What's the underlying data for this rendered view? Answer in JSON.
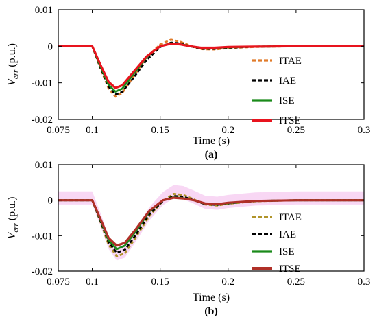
{
  "chart_data": [
    {
      "type": "line",
      "caption": "(a)",
      "xlabel": "Time (s)",
      "ylabel_main": "V",
      "ylabel_sub": "err",
      "ylabel_unit": " (p.u.)",
      "xlim": [
        0.075,
        0.3
      ],
      "ylim": [
        -0.02,
        0.01
      ],
      "xticks": [
        0.075,
        0.1,
        0.15,
        0.2,
        0.25,
        0.3
      ],
      "xtick_labels": [
        "0.075",
        "0.1",
        "0.15",
        "0.2",
        "0.25",
        "0.3"
      ],
      "yticks": [
        0.01,
        0,
        -0.01,
        -0.02
      ],
      "ytick_labels": [
        "0.01",
        "0",
        "-0.01",
        "-0.02"
      ],
      "legend_position": "lower-right",
      "series": [
        {
          "name": "ITAE",
          "color": "#e07b2a",
          "dash": "dashed",
          "x": [
            0.075,
            0.1,
            0.106,
            0.112,
            0.117,
            0.122,
            0.13,
            0.14,
            0.15,
            0.158,
            0.165,
            0.172,
            0.18,
            0.19,
            0.2,
            0.22,
            0.25,
            0.3
          ],
          "y": [
            0.0,
            0.0,
            -0.006,
            -0.0115,
            -0.0138,
            -0.0128,
            -0.0085,
            -0.003,
            0.0005,
            0.0018,
            0.0012,
            0.0002,
            -0.0008,
            -0.0009,
            -0.0005,
            -0.0002,
            0.0,
            0.0
          ]
        },
        {
          "name": "IAE",
          "color": "#000000",
          "dash": "dashed",
          "x": [
            0.075,
            0.1,
            0.106,
            0.112,
            0.117,
            0.122,
            0.13,
            0.14,
            0.15,
            0.158,
            0.165,
            0.172,
            0.18,
            0.19,
            0.2,
            0.22,
            0.25,
            0.3
          ],
          "y": [
            0.0,
            0.0,
            -0.0058,
            -0.011,
            -0.0132,
            -0.0125,
            -0.0088,
            -0.0038,
            -0.0002,
            0.001,
            0.0008,
            0.0,
            -0.0007,
            -0.0007,
            -0.0004,
            -0.0001,
            0.0,
            0.0
          ]
        },
        {
          "name": "ISE",
          "color": "#1a8a1a",
          "dash": "solid",
          "x": [
            0.075,
            0.1,
            0.106,
            0.112,
            0.117,
            0.122,
            0.13,
            0.14,
            0.15,
            0.158,
            0.165,
            0.172,
            0.18,
            0.19,
            0.2,
            0.22,
            0.25,
            0.3
          ],
          "y": [
            0.0,
            0.0,
            -0.0055,
            -0.0105,
            -0.0124,
            -0.0116,
            -0.0078,
            -0.003,
            0.0,
            0.0008,
            0.0006,
            0.0,
            -0.0005,
            -0.0005,
            -0.0003,
            -0.0001,
            0.0,
            0.0
          ]
        },
        {
          "name": "ITSE",
          "color": "#e8141e",
          "dash": "solid",
          "x": [
            0.075,
            0.1,
            0.106,
            0.112,
            0.117,
            0.122,
            0.13,
            0.14,
            0.15,
            0.158,
            0.165,
            0.172,
            0.18,
            0.19,
            0.2,
            0.22,
            0.25,
            0.3
          ],
          "y": [
            0.0,
            0.0,
            -0.005,
            -0.0097,
            -0.0114,
            -0.0107,
            -0.0072,
            -0.0028,
            0.0,
            0.0007,
            0.0005,
            0.0,
            -0.0004,
            -0.0004,
            -0.0002,
            -0.0001,
            0.0,
            0.0
          ]
        }
      ]
    },
    {
      "type": "line",
      "caption": "(b)",
      "xlabel": "Time (s)",
      "ylabel_main": "V",
      "ylabel_sub": "err",
      "ylabel_unit": " (p.u.)",
      "xlim": [
        0.075,
        0.3
      ],
      "ylim": [
        -0.02,
        0.01
      ],
      "xticks": [
        0.075,
        0.1,
        0.15,
        0.2,
        0.25,
        0.3
      ],
      "xtick_labels": [
        "0.075",
        "0.1",
        "0.15",
        "0.2",
        "0.25",
        "0.3"
      ],
      "yticks": [
        0.01,
        0,
        -0.01,
        -0.02
      ],
      "ytick_labels": [
        "0.01",
        "0",
        "-0.01",
        "-0.02"
      ],
      "legend_position": "lower-right",
      "band_color": "#f5c6f0",
      "series": [
        {
          "name": "ITAE",
          "color": "#b0942a",
          "dash": "dashed",
          "x": [
            0.075,
            0.1,
            0.106,
            0.112,
            0.118,
            0.124,
            0.132,
            0.142,
            0.152,
            0.16,
            0.167,
            0.175,
            0.183,
            0.192,
            0.2,
            0.22,
            0.25,
            0.3
          ],
          "y": [
            0.0,
            0.0,
            -0.006,
            -0.0125,
            -0.0158,
            -0.015,
            -0.0105,
            -0.0045,
            -0.0002,
            0.0018,
            0.0015,
            0.0002,
            -0.0012,
            -0.0015,
            -0.001,
            -0.0003,
            0.0,
            0.0
          ]
        },
        {
          "name": "IAE",
          "color": "#000000",
          "dash": "dashed",
          "x": [
            0.075,
            0.1,
            0.106,
            0.112,
            0.118,
            0.124,
            0.132,
            0.142,
            0.152,
            0.16,
            0.167,
            0.175,
            0.183,
            0.192,
            0.2,
            0.22,
            0.25,
            0.3
          ],
          "y": [
            0.0,
            0.0,
            -0.0058,
            -0.0118,
            -0.0148,
            -0.014,
            -0.0098,
            -0.004,
            -0.0002,
            0.0012,
            0.001,
            0.0,
            -0.0011,
            -0.0013,
            -0.0009,
            -0.0002,
            0.0,
            0.0
          ]
        },
        {
          "name": "ISE",
          "color": "#1a8a1a",
          "dash": "solid",
          "x": [
            0.075,
            0.1,
            0.106,
            0.112,
            0.118,
            0.124,
            0.132,
            0.142,
            0.152,
            0.16,
            0.167,
            0.175,
            0.183,
            0.192,
            0.2,
            0.22,
            0.25,
            0.3
          ],
          "y": [
            0.0,
            0.0,
            -0.0055,
            -0.0112,
            -0.0138,
            -0.0128,
            -0.0088,
            -0.0032,
            0.0,
            0.0008,
            0.0006,
            0.0,
            -0.001,
            -0.0012,
            -0.0008,
            -0.0002,
            0.0,
            0.0
          ]
        },
        {
          "name": "ITSE",
          "color": "#b03028",
          "dash": "solid",
          "x": [
            0.075,
            0.1,
            0.106,
            0.112,
            0.118,
            0.124,
            0.132,
            0.142,
            0.152,
            0.16,
            0.167,
            0.175,
            0.183,
            0.192,
            0.2,
            0.22,
            0.25,
            0.3
          ],
          "y": [
            0.0,
            0.0,
            -0.0052,
            -0.0106,
            -0.0128,
            -0.012,
            -0.0082,
            -0.003,
            0.0,
            0.0007,
            0.0005,
            0.0,
            -0.0009,
            -0.0011,
            -0.0007,
            -0.0002,
            0.0,
            0.0
          ]
        }
      ]
    }
  ]
}
